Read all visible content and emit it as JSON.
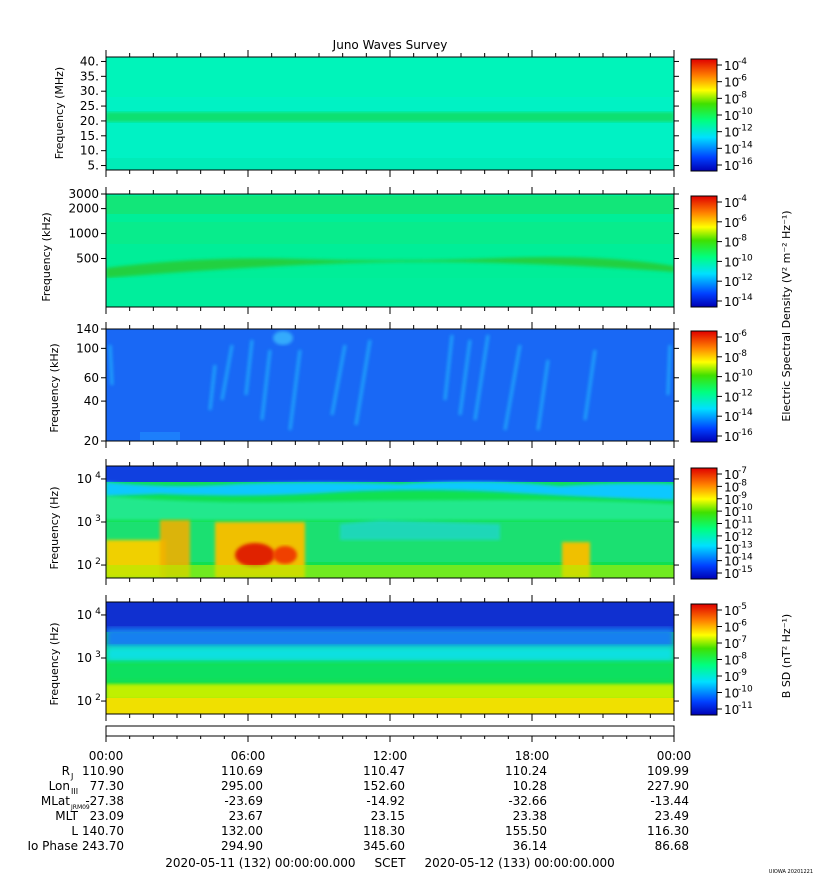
{
  "title": "Juno Waves Survey",
  "watermark": "UIOWA 20201221",
  "chart_data": [
    {
      "type": "heatmap",
      "ylabel": "Frequency (MHz)",
      "ylim": [
        3.5,
        41.5
      ],
      "yticks": [
        {
          "v": 5,
          "label": "5."
        },
        {
          "v": 10,
          "label": "10."
        },
        {
          "v": 15,
          "label": "15."
        },
        {
          "v": 20,
          "label": "20."
        },
        {
          "v": 25,
          "label": "25."
        },
        {
          "v": 30,
          "label": "30."
        },
        {
          "v": 35,
          "label": "35."
        },
        {
          "v": 40,
          "label": "40."
        }
      ],
      "yscale": "linear",
      "colorbar": {
        "ticks": [
          "-4",
          "-6",
          "-8",
          "-10",
          "-12",
          "-14",
          "-16"
        ],
        "range": [
          -16,
          -4
        ]
      }
    },
    {
      "type": "heatmap",
      "ylabel": "Frequency (kHz)",
      "ylim": [
        130,
        3000
      ],
      "yticks": [
        {
          "v": 500,
          "label": "500"
        },
        {
          "v": 1000,
          "label": "1000"
        },
        {
          "v": 2000,
          "label": "2000"
        },
        {
          "v": 3000,
          "label": "3000"
        }
      ],
      "yscale": "log",
      "colorbar": {
        "ticks": [
          "-4",
          "-6",
          "-8",
          "-10",
          "-12",
          "-14"
        ],
        "range": [
          -15,
          -3.5
        ]
      },
      "colorbar_label": "Electric Spectral Density (V² m⁻² Hz⁻¹)"
    },
    {
      "type": "heatmap",
      "ylabel": "Frequency (kHz)",
      "ylim": [
        20,
        140
      ],
      "yticks": [
        {
          "v": 20,
          "label": "20"
        },
        {
          "v": 40,
          "label": "40"
        },
        {
          "v": 60,
          "label": "60"
        },
        {
          "v": 100,
          "label": "100"
        },
        {
          "v": 140,
          "label": "140"
        }
      ],
      "yscale": "log",
      "colorbar": {
        "ticks": [
          "-6",
          "-8",
          "-10",
          "-12",
          "-14",
          "-16"
        ],
        "range": [
          -16,
          -6
        ]
      }
    },
    {
      "type": "heatmap",
      "ylabel": "Frequency (Hz)",
      "ylim": [
        50,
        20000
      ],
      "yticks": [
        {
          "v": 100,
          "label": "10",
          "exp": "2"
        },
        {
          "v": 1000,
          "label": "10",
          "exp": "3"
        },
        {
          "v": 10000,
          "label": "10",
          "exp": "4"
        }
      ],
      "yscale": "log",
      "colorbar": {
        "ticks": [
          "-7",
          "-8",
          "-9",
          "-10",
          "-11",
          "-12",
          "-13",
          "-14",
          "-15"
        ],
        "range": [
          -15,
          -7
        ]
      }
    },
    {
      "type": "heatmap",
      "ylabel": "Frequency (Hz)",
      "ylim": [
        50,
        20000
      ],
      "yticks": [
        {
          "v": 100,
          "label": "10",
          "exp": "2"
        },
        {
          "v": 1000,
          "label": "10",
          "exp": "3"
        },
        {
          "v": 10000,
          "label": "10",
          "exp": "4"
        }
      ],
      "yscale": "log",
      "colorbar": {
        "ticks": [
          "-5",
          "-6",
          "-7",
          "-8",
          "-9",
          "-10",
          "-11"
        ],
        "range": [
          -11,
          -4.5
        ]
      },
      "colorbar_label": "B SD (nT² Hz⁻¹)"
    }
  ],
  "time_axis": {
    "ticks": [
      "00:00",
      "06:00",
      "12:00",
      "18:00",
      "00:00"
    ],
    "rows": [
      {
        "label": "R",
        "sub": "J",
        "values": [
          "110.90",
          "110.69",
          "110.47",
          "110.24",
          "109.99"
        ]
      },
      {
        "label": "Lon",
        "sub": "III",
        "values": [
          "77.30",
          "295.00",
          "152.60",
          "10.28",
          "227.90"
        ]
      },
      {
        "label": "MLat",
        "sub": "JRM09",
        "values": [
          "-27.38",
          "-23.69",
          "-14.92",
          "-32.66",
          "-13.44"
        ]
      },
      {
        "label": "MLT",
        "sub": "",
        "values": [
          "23.09",
          "23.67",
          "23.15",
          "23.38",
          "23.49"
        ]
      },
      {
        "label": "L",
        "sub": "",
        "values": [
          "140.70",
          "132.00",
          "118.30",
          "155.50",
          "116.30"
        ]
      },
      {
        "label": "Io Phase",
        "sub": "",
        "values": [
          "243.70",
          "294.90",
          "345.60",
          "36.14",
          "86.68"
        ]
      }
    ],
    "footer": "2020-05-11 (132) 00:00:00.000     SCET     2020-05-12 (133) 00:00:00.000"
  },
  "colors": {
    "background": "#ffffff",
    "axis": "#000000"
  }
}
